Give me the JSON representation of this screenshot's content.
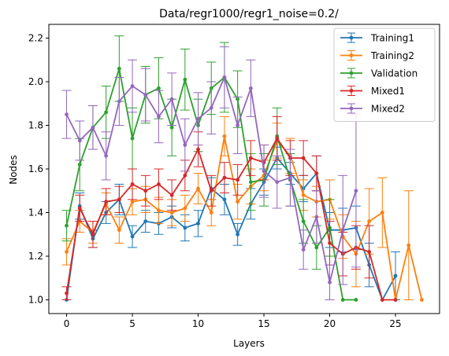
{
  "chart_data": {
    "type": "line",
    "title": "Data/regr1000/regr1_noise=0.2/",
    "xlabel": "Layers",
    "ylabel": "Nodes",
    "xlim": [
      -1.35,
      28.35
    ],
    "ylim": [
      0.937,
      2.263
    ],
    "xticks": [
      0,
      5,
      10,
      15,
      20,
      25
    ],
    "yticks": [
      1.0,
      1.2,
      1.4,
      1.6,
      1.8,
      2.0,
      2.2
    ],
    "ytick_labels": [
      "1.0",
      "1.2",
      "1.4",
      "1.6",
      "1.8",
      "2.0",
      "2.2"
    ],
    "legend_position": "top-right",
    "error_bars": true,
    "series": [
      {
        "name": "Training1",
        "color": "#1f77b4",
        "x": [
          0,
          1,
          2,
          3,
          4,
          5,
          6,
          7,
          8,
          9,
          10,
          11,
          12,
          13,
          14,
          15,
          16,
          17,
          18,
          19,
          20,
          21,
          22,
          23,
          24,
          25
        ],
        "y": [
          1.0,
          1.43,
          1.28,
          1.4,
          1.46,
          1.29,
          1.36,
          1.35,
          1.38,
          1.33,
          1.35,
          1.51,
          1.46,
          1.3,
          1.44,
          1.54,
          1.65,
          1.58,
          1.51,
          1.58,
          1.32,
          1.32,
          1.33,
          1.16,
          1.0,
          1.11
        ],
        "err": [
          0,
          0.06,
          0.04,
          0.05,
          0.07,
          0.05,
          0.05,
          0.05,
          0.05,
          0.06,
          0.06,
          0.05,
          0.07,
          0.05,
          0.07,
          0.06,
          0.05,
          0.05,
          0.06,
          0.08,
          0.08,
          0.1,
          0.1,
          0.1,
          0,
          0.11
        ]
      },
      {
        "name": "Training2",
        "color": "#ff7f0e",
        "x": [
          0,
          1,
          2,
          3,
          4,
          5,
          6,
          7,
          8,
          9,
          10,
          11,
          12,
          13,
          14,
          15,
          16,
          17,
          18,
          19,
          20,
          21,
          22,
          23,
          24,
          25,
          26,
          27
        ],
        "y": [
          1.22,
          1.36,
          1.31,
          1.44,
          1.32,
          1.45,
          1.46,
          1.41,
          1.4,
          1.42,
          1.51,
          1.4,
          1.75,
          1.45,
          1.52,
          1.57,
          1.73,
          1.66,
          1.48,
          1.45,
          1.46,
          1.29,
          1.21,
          1.36,
          1.4,
          1.0,
          1.25,
          1.0
        ],
        "err": [
          0.06,
          0.05,
          0.05,
          0.05,
          0.06,
          0.06,
          0.06,
          0.06,
          0.06,
          0.06,
          0.07,
          0.06,
          0.09,
          0.08,
          0.08,
          0.07,
          0.08,
          0.08,
          0.07,
          0.07,
          0.09,
          0.1,
          0.15,
          0.15,
          0.16,
          0,
          0.25,
          0
        ]
      },
      {
        "name": "Validation",
        "color": "#2ca02c",
        "x": [
          0,
          1,
          2,
          3,
          4,
          5,
          6,
          7,
          8,
          9,
          10,
          11,
          12,
          13,
          14,
          15,
          16,
          17,
          18,
          19,
          20,
          21,
          22
        ],
        "y": [
          1.34,
          1.62,
          1.79,
          1.86,
          2.06,
          1.74,
          1.94,
          1.97,
          1.79,
          2.01,
          1.8,
          1.97,
          2.02,
          1.92,
          1.54,
          1.55,
          1.75,
          1.55,
          1.36,
          1.24,
          1.33,
          1.0,
          1.0
        ],
        "err": [
          0.07,
          0.12,
          0.1,
          0.12,
          0.15,
          0.14,
          0.13,
          0.14,
          0.13,
          0.14,
          0.12,
          0.12,
          0.16,
          0.13,
          0.13,
          0.12,
          0.13,
          0.12,
          0.1,
          0.1,
          0.13,
          0,
          0
        ]
      },
      {
        "name": "Mixed1",
        "color": "#d62728",
        "x": [
          0,
          1,
          2,
          3,
          4,
          5,
          6,
          7,
          8,
          9,
          10,
          11,
          12,
          13,
          14,
          15,
          16,
          17,
          18,
          19,
          20,
          21,
          22,
          23,
          24,
          25
        ],
        "y": [
          1.03,
          1.42,
          1.3,
          1.45,
          1.46,
          1.53,
          1.5,
          1.53,
          1.48,
          1.57,
          1.69,
          1.5,
          1.56,
          1.55,
          1.65,
          1.63,
          1.74,
          1.65,
          1.65,
          1.58,
          1.26,
          1.21,
          1.24,
          1.22,
          1.0,
          1.0
        ],
        "err": [
          0.03,
          0.06,
          0.06,
          0.06,
          0.06,
          0.07,
          0.07,
          0.07,
          0.07,
          0.07,
          0.08,
          0.07,
          0.07,
          0.07,
          0.08,
          0.08,
          0.1,
          0.08,
          0.08,
          0.08,
          0.1,
          0.1,
          0.1,
          0.12,
          0,
          0
        ]
      },
      {
        "name": "Mixed2",
        "color": "#9467bd",
        "x": [
          0,
          1,
          2,
          3,
          4,
          5,
          6,
          7,
          8,
          9,
          10,
          11,
          12,
          13,
          14,
          15,
          16,
          17,
          18,
          19,
          20,
          21,
          22
        ],
        "y": [
          1.85,
          1.73,
          1.79,
          1.66,
          1.91,
          1.98,
          1.94,
          1.84,
          1.92,
          1.71,
          1.83,
          1.88,
          2.02,
          1.8,
          1.97,
          1.59,
          1.54,
          1.56,
          1.23,
          1.38,
          1.08,
          1.32,
          1.5
        ],
        "err": [
          0.11,
          0.09,
          0.1,
          0.11,
          0.11,
          0.12,
          0.12,
          0.12,
          0.12,
          0.12,
          0.12,
          0.12,
          0.14,
          0.13,
          0.13,
          0.12,
          0.12,
          0.13,
          0.09,
          0.12,
          0.08,
          0.25,
          0.35
        ]
      }
    ]
  }
}
